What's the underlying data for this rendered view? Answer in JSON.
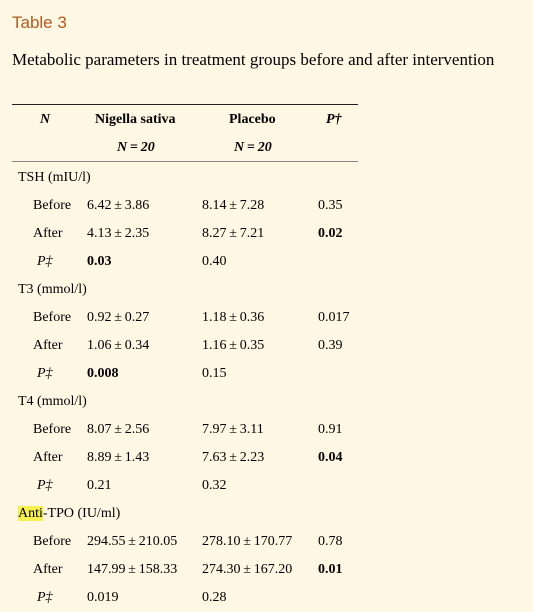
{
  "table_label": "Table 3",
  "caption": "Metabolic parameters in treatment groups before and after intervention",
  "header": {
    "col_n": "N",
    "col_ns": "Nigella sativa",
    "col_pl": "Placebo",
    "col_p": "P†",
    "ns_n": "N = 20",
    "pl_n": "N = 20"
  },
  "sections": [
    {
      "title": "TSH (mIU/l)",
      "rows": [
        {
          "label": "Before",
          "ns": "6.42 ± 3.86",
          "pl": "8.14 ± 7.28",
          "p": "0.35"
        },
        {
          "label": "After",
          "ns": "4.13 ± 2.35",
          "pl": "8.27 ± 7.21",
          "p": "0.02"
        },
        {
          "label": "P‡",
          "ns": "0.03",
          "pl": "0.40",
          "p": ""
        }
      ]
    },
    {
      "title": "T3 (mmol/l)",
      "rows": [
        {
          "label": "Before",
          "ns": "0.92 ± 0.27",
          "pl": "1.18 ± 0.36",
          "p": "0.017"
        },
        {
          "label": "After",
          "ns": "1.06 ± 0.34",
          "pl": "1.16 ± 0.35",
          "p": "0.39"
        },
        {
          "label": "P‡",
          "ns": "0.008",
          "pl": "0.15",
          "p": ""
        }
      ]
    },
    {
      "title": "T4 (mmol/l)",
      "rows": [
        {
          "label": "Before",
          "ns": "8.07 ± 2.56",
          "pl": "7.97 ± 3.11",
          "p": "0.91"
        },
        {
          "label": "After",
          "ns": "8.89 ± 1.43",
          "pl": "7.63 ± 2.23",
          "p": "0.04"
        },
        {
          "label": "P‡",
          "ns": "0.21",
          "pl": "0.32",
          "p": ""
        }
      ]
    },
    {
      "title_highlight": "Anti",
      "title_rest": "-TPO (IU/ml)",
      "rows": [
        {
          "label": "Before",
          "ns": "294.55 ± 210.05",
          "pl": "278.10 ± 170.77",
          "p": "0.78"
        },
        {
          "label": "After",
          "ns": "147.99 ± 158.33",
          "pl": "274.30 ± 167.20",
          "p": "0.01"
        },
        {
          "label": "P‡",
          "ns": "0.019",
          "pl": "0.28",
          "p": ""
        }
      ]
    }
  ]
}
